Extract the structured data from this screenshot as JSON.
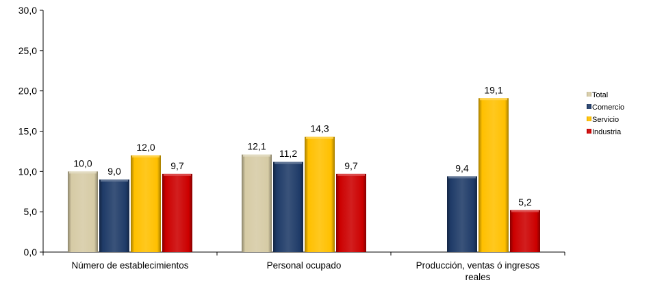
{
  "chart_data": {
    "type": "bar",
    "categories": [
      "Número de establecimientos",
      "Personal ocupado",
      "Producción, ventas ó ingresos reales"
    ],
    "category_lines": [
      [
        "Número de establecimientos"
      ],
      [
        "Personal ocupado"
      ],
      [
        "Producción, ventas ó ingresos",
        "reales"
      ]
    ],
    "series": [
      {
        "name": "Total",
        "values": [
          10.0,
          12.1,
          null
        ],
        "labels": [
          "10,0",
          "12,1",
          ""
        ],
        "color": "#d6cba5"
      },
      {
        "name": "Comercio",
        "values": [
          9.0,
          11.2,
          9.4
        ],
        "labels": [
          "9,0",
          "11,2",
          "9,4"
        ],
        "color": "#1f3b68"
      },
      {
        "name": "Servicio",
        "values": [
          12.0,
          14.3,
          19.1
        ],
        "labels": [
          "12,0",
          "14,3",
          "19,1"
        ],
        "color": "#ffc000"
      },
      {
        "name": "Industria",
        "values": [
          9.7,
          9.7,
          5.2
        ],
        "labels": [
          "9,7",
          "9,7",
          "5,2"
        ],
        "color": "#cc0000"
      }
    ],
    "y_ticks": [
      0,
      5,
      10,
      15,
      20,
      25,
      30
    ],
    "y_tick_labels": [
      "0,0",
      "5,0",
      "10,0",
      "15,0",
      "20,0",
      "25,0",
      "30,0"
    ],
    "ylim": [
      0,
      30
    ],
    "grid": false,
    "legend_position": "right",
    "title": "",
    "xlabel": "",
    "ylabel": ""
  }
}
